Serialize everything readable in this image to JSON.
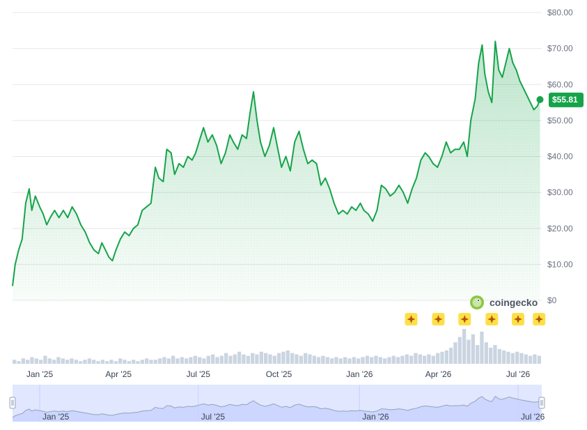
{
  "brand": {
    "name": "coingecko"
  },
  "colors": {
    "line": "#16a34a",
    "area_top": "#16a34a",
    "badge": "#16a34a",
    "volume": "#cbd5e1",
    "navigator_fill": "#e0e7ff",
    "navigator_line": "#94a3b8",
    "event_marker": "#fde047"
  },
  "current_price": {
    "label": "$55.81",
    "value": 55.81
  },
  "icons": {
    "event_marker": "sparkle-icon",
    "brand_logo": "gecko-icon",
    "handle": "grip-icon"
  },
  "chart_data": {
    "type": "area",
    "title": "",
    "xlabel": "",
    "ylabel": "",
    "ylim": [
      0,
      80
    ],
    "y_ticks": [
      "$80.00",
      "$70.00",
      "$60.00",
      "$50.00",
      "$40.00",
      "$30.00",
      "$20.00",
      "$10.00",
      "$0"
    ],
    "y_tick_values": [
      80,
      70,
      60,
      50,
      40,
      30,
      20,
      10,
      0
    ],
    "x_range": [
      "2024-12-01",
      "2026-07-28"
    ],
    "x_ticks": [
      {
        "label": "Jan '25",
        "date": "2025-01-01"
      },
      {
        "label": "Apr '25",
        "date": "2025-04-01"
      },
      {
        "label": "Jul '25",
        "date": "2025-07-01"
      },
      {
        "label": "Oct '25",
        "date": "2025-10-01"
      },
      {
        "label": "Jan '26",
        "date": "2026-01-01"
      },
      {
        "label": "Apr '26",
        "date": "2026-04-01"
      },
      {
        "label": "Jul '26",
        "date": "2026-07-01"
      }
    ],
    "navigator_ticks": [
      {
        "label": "Jan '25",
        "date": "2025-01-01"
      },
      {
        "label": "Jul '25",
        "date": "2025-07-01"
      },
      {
        "label": "Jan '26",
        "date": "2026-01-01"
      },
      {
        "label": "Jul '26",
        "date": "2026-07-01"
      }
    ],
    "grid": true,
    "series": [
      {
        "points": [
          [
            "2024-12-01",
            4
          ],
          [
            "2024-12-04",
            10
          ],
          [
            "2024-12-08",
            14
          ],
          [
            "2024-12-12",
            17
          ],
          [
            "2024-12-16",
            27
          ],
          [
            "2024-12-20",
            31
          ],
          [
            "2024-12-23",
            25
          ],
          [
            "2024-12-27",
            29
          ],
          [
            "2025-01-01",
            26
          ],
          [
            "2025-01-05",
            24
          ],
          [
            "2025-01-09",
            21
          ],
          [
            "2025-01-13",
            23
          ],
          [
            "2025-01-18",
            25
          ],
          [
            "2025-01-23",
            23
          ],
          [
            "2025-01-28",
            25
          ],
          [
            "2025-02-02",
            23
          ],
          [
            "2025-02-07",
            26
          ],
          [
            "2025-02-12",
            24
          ],
          [
            "2025-02-17",
            21
          ],
          [
            "2025-02-22",
            19
          ],
          [
            "2025-02-27",
            16
          ],
          [
            "2025-03-04",
            14
          ],
          [
            "2025-03-09",
            13
          ],
          [
            "2025-03-13",
            16
          ],
          [
            "2025-03-17",
            14
          ],
          [
            "2025-03-21",
            12
          ],
          [
            "2025-03-25",
            11
          ],
          [
            "2025-03-29",
            14
          ],
          [
            "2025-04-03",
            17
          ],
          [
            "2025-04-08",
            19
          ],
          [
            "2025-04-13",
            18
          ],
          [
            "2025-04-18",
            20
          ],
          [
            "2025-04-23",
            21
          ],
          [
            "2025-04-28",
            25
          ],
          [
            "2025-05-03",
            26
          ],
          [
            "2025-05-08",
            27
          ],
          [
            "2025-05-13",
            37
          ],
          [
            "2025-05-17",
            34
          ],
          [
            "2025-05-22",
            33
          ],
          [
            "2025-05-26",
            42
          ],
          [
            "2025-05-31",
            41
          ],
          [
            "2025-06-04",
            35
          ],
          [
            "2025-06-09",
            38
          ],
          [
            "2025-06-14",
            37
          ],
          [
            "2025-06-19",
            40
          ],
          [
            "2025-06-24",
            39
          ],
          [
            "2025-06-28",
            41
          ],
          [
            "2025-07-03",
            45
          ],
          [
            "2025-07-07",
            48
          ],
          [
            "2025-07-12",
            44
          ],
          [
            "2025-07-17",
            46
          ],
          [
            "2025-07-22",
            43
          ],
          [
            "2025-07-27",
            38
          ],
          [
            "2025-08-01",
            41
          ],
          [
            "2025-08-06",
            46
          ],
          [
            "2025-08-10",
            44
          ],
          [
            "2025-08-15",
            42
          ],
          [
            "2025-08-20",
            46
          ],
          [
            "2025-08-25",
            45
          ],
          [
            "2025-08-29",
            52
          ],
          [
            "2025-09-02",
            58
          ],
          [
            "2025-09-06",
            50
          ],
          [
            "2025-09-10",
            44
          ],
          [
            "2025-09-15",
            40
          ],
          [
            "2025-09-20",
            43
          ],
          [
            "2025-09-25",
            48
          ],
          [
            "2025-09-29",
            43
          ],
          [
            "2025-10-04",
            37
          ],
          [
            "2025-10-09",
            40
          ],
          [
            "2025-10-14",
            36
          ],
          [
            "2025-10-19",
            44
          ],
          [
            "2025-10-24",
            47
          ],
          [
            "2025-10-29",
            42
          ],
          [
            "2025-11-03",
            38
          ],
          [
            "2025-11-08",
            39
          ],
          [
            "2025-11-13",
            38
          ],
          [
            "2025-11-18",
            32
          ],
          [
            "2025-11-23",
            34
          ],
          [
            "2025-11-28",
            31
          ],
          [
            "2025-12-03",
            27
          ],
          [
            "2025-12-08",
            24
          ],
          [
            "2025-12-13",
            25
          ],
          [
            "2025-12-18",
            24
          ],
          [
            "2025-12-23",
            26
          ],
          [
            "2025-12-28",
            25
          ],
          [
            "2026-01-02",
            27
          ],
          [
            "2026-01-06",
            25
          ],
          [
            "2026-01-11",
            24
          ],
          [
            "2026-01-16",
            22
          ],
          [
            "2026-01-21",
            25
          ],
          [
            "2026-01-26",
            32
          ],
          [
            "2026-01-31",
            31
          ],
          [
            "2026-02-05",
            29
          ],
          [
            "2026-02-10",
            30
          ],
          [
            "2026-02-15",
            32
          ],
          [
            "2026-02-20",
            30
          ],
          [
            "2026-02-25",
            27
          ],
          [
            "2026-03-02",
            31
          ],
          [
            "2026-03-07",
            34
          ],
          [
            "2026-03-12",
            39
          ],
          [
            "2026-03-17",
            41
          ],
          [
            "2026-03-21",
            40
          ],
          [
            "2026-03-26",
            38
          ],
          [
            "2026-03-31",
            37
          ],
          [
            "2026-04-05",
            40
          ],
          [
            "2026-04-10",
            44
          ],
          [
            "2026-04-15",
            41
          ],
          [
            "2026-04-20",
            42
          ],
          [
            "2026-04-25",
            42
          ],
          [
            "2026-04-30",
            44
          ],
          [
            "2026-05-04",
            40
          ],
          [
            "2026-05-08",
            50
          ],
          [
            "2026-05-13",
            56
          ],
          [
            "2026-05-17",
            66
          ],
          [
            "2026-05-21",
            71
          ],
          [
            "2026-05-24",
            63
          ],
          [
            "2026-05-28",
            58
          ],
          [
            "2026-06-01",
            55
          ],
          [
            "2026-06-05",
            72
          ],
          [
            "2026-06-09",
            64
          ],
          [
            "2026-06-13",
            62
          ],
          [
            "2026-06-17",
            66
          ],
          [
            "2026-06-21",
            70
          ],
          [
            "2026-06-25",
            66
          ],
          [
            "2026-06-29",
            64
          ],
          [
            "2026-07-03",
            61
          ],
          [
            "2026-07-07",
            59
          ],
          [
            "2026-07-11",
            57
          ],
          [
            "2026-07-15",
            55
          ],
          [
            "2026-07-19",
            53
          ],
          [
            "2026-07-23",
            54
          ],
          [
            "2026-07-26",
            55.81
          ]
        ]
      }
    ],
    "volume": [
      3,
      2,
      4,
      3,
      5,
      4,
      3,
      6,
      4,
      3,
      5,
      4,
      3,
      4,
      3,
      2,
      3,
      4,
      3,
      2,
      3,
      2,
      3,
      2,
      4,
      3,
      2,
      3,
      2,
      3,
      4,
      3,
      3,
      4,
      5,
      4,
      6,
      4,
      5,
      4,
      5,
      6,
      5,
      4,
      6,
      7,
      5,
      6,
      8,
      6,
      7,
      9,
      7,
      6,
      8,
      7,
      9,
      8,
      7,
      6,
      8,
      9,
      10,
      8,
      7,
      6,
      8,
      7,
      6,
      5,
      6,
      5,
      4,
      5,
      4,
      5,
      4,
      5,
      4,
      5,
      6,
      5,
      6,
      5,
      4,
      5,
      6,
      5,
      6,
      7,
      6,
      8,
      7,
      6,
      7,
      6,
      8,
      9,
      10,
      12,
      16,
      20,
      26,
      18,
      22,
      14,
      24,
      16,
      12,
      14,
      11,
      10,
      9,
      8,
      9,
      8,
      7,
      6,
      7,
      6
    ],
    "event_markers": [
      "2026-03-01",
      "2026-04-01",
      "2026-05-01",
      "2026-06-01",
      "2026-07-01",
      "2026-07-25"
    ]
  }
}
